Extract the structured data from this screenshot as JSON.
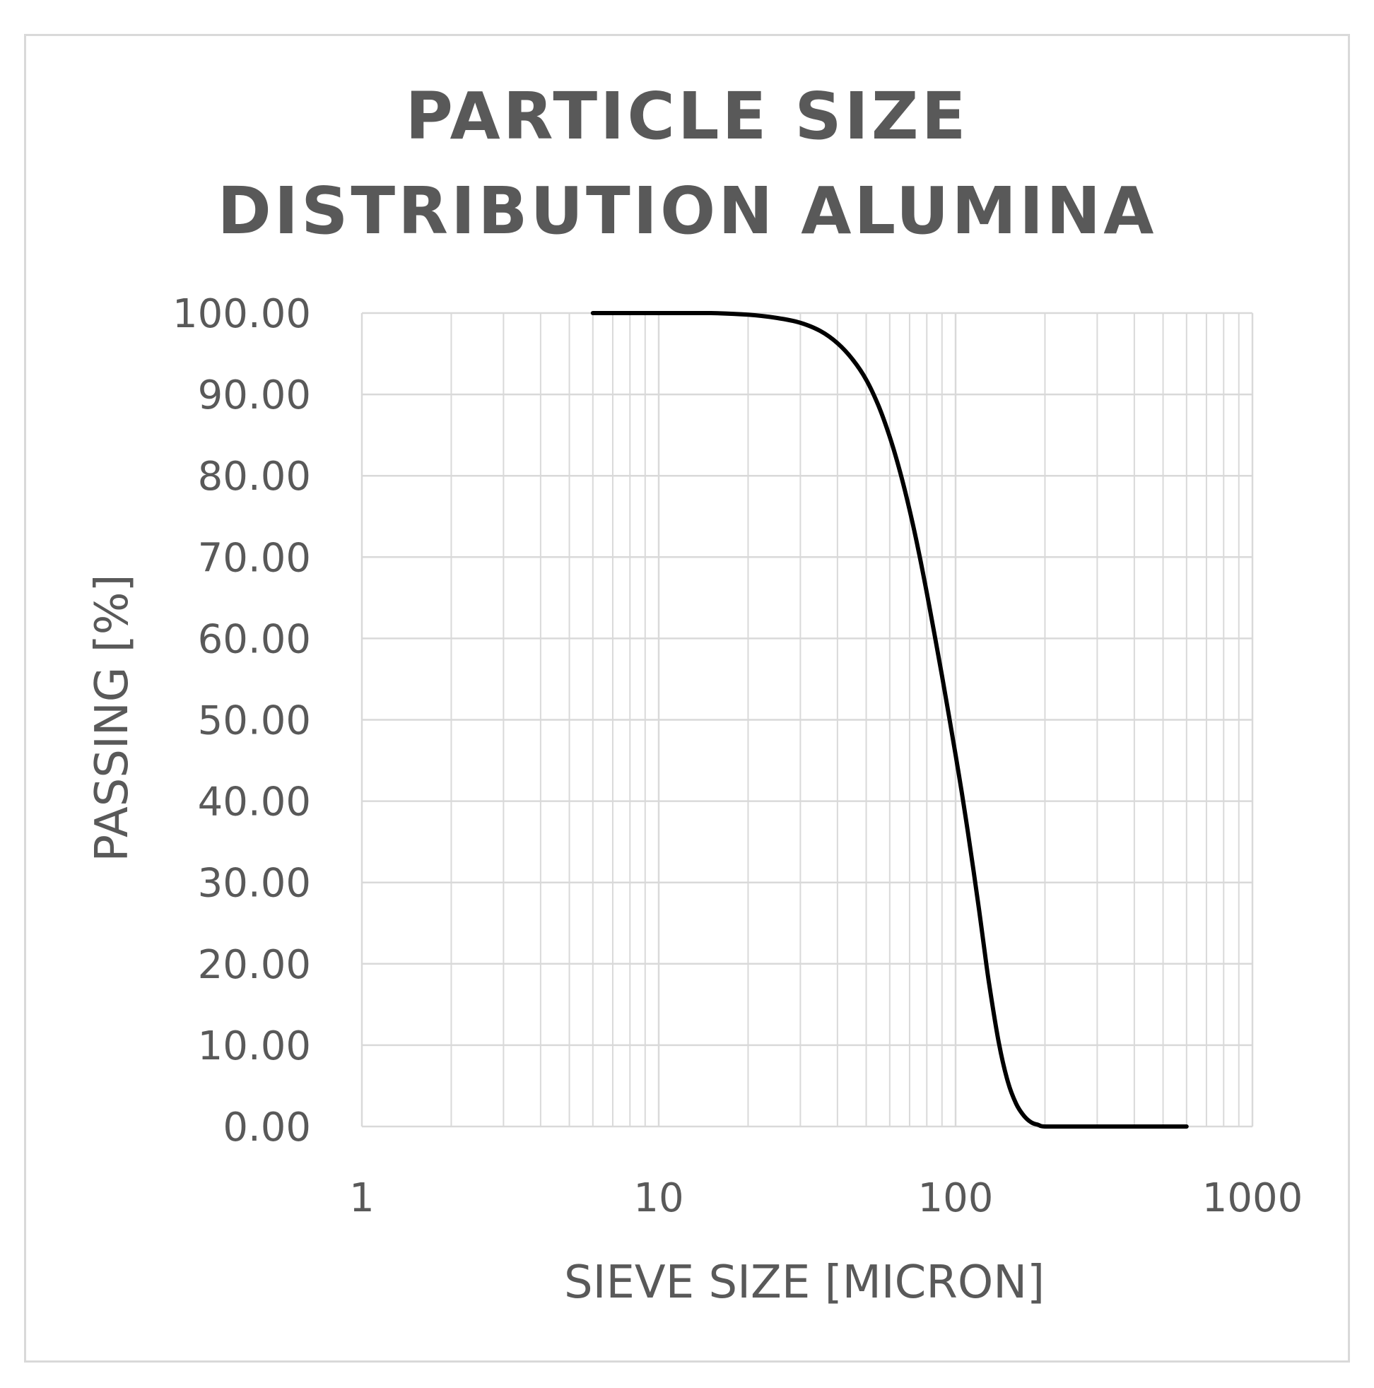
{
  "chart_data": {
    "type": "line",
    "title_lines": [
      "PARTICLE SIZE",
      "DISTRIBUTION ALUMINA"
    ],
    "xlabel": "SIEVE SIZE [MICRON]",
    "ylabel": "PASSING [%]",
    "x_scale": "log",
    "xlim": [
      1,
      1000
    ],
    "ylim": [
      0,
      100
    ],
    "x_ticks": [
      "1",
      "10",
      "100",
      "1000"
    ],
    "y_ticks": [
      "0.00",
      "10.00",
      "20.00",
      "30.00",
      "40.00",
      "50.00",
      "60.00",
      "70.00",
      "80.00",
      "90.00",
      "100.00"
    ],
    "grid": true,
    "legend": "none",
    "line_color": "#000000",
    "grid_color": "#d9d9d9",
    "series": [
      {
        "x": [
          6,
          10,
          15,
          20,
          25,
          30,
          35,
          40,
          45,
          50,
          55,
          60,
          65,
          70,
          75,
          80,
          85,
          90,
          95,
          100,
          105,
          110,
          115,
          120,
          125,
          130,
          140,
          150,
          160,
          170,
          180,
          190,
          200,
          250,
          300,
          400,
          500,
          600
        ],
        "values": [
          100,
          100,
          100,
          99.8,
          99.4,
          98.8,
          97.8,
          96.3,
          94.3,
          91.8,
          88.6,
          84.8,
          80.5,
          75.8,
          70.8,
          65.6,
          60.4,
          55.4,
          50.5,
          45.7,
          41.0,
          36.2,
          31.4,
          26.6,
          21.8,
          17.3,
          10.2,
          5.5,
          2.8,
          1.3,
          0.5,
          0.2,
          0.0,
          0.0,
          0.0,
          0.0,
          0.0,
          0.0
        ]
      }
    ]
  }
}
